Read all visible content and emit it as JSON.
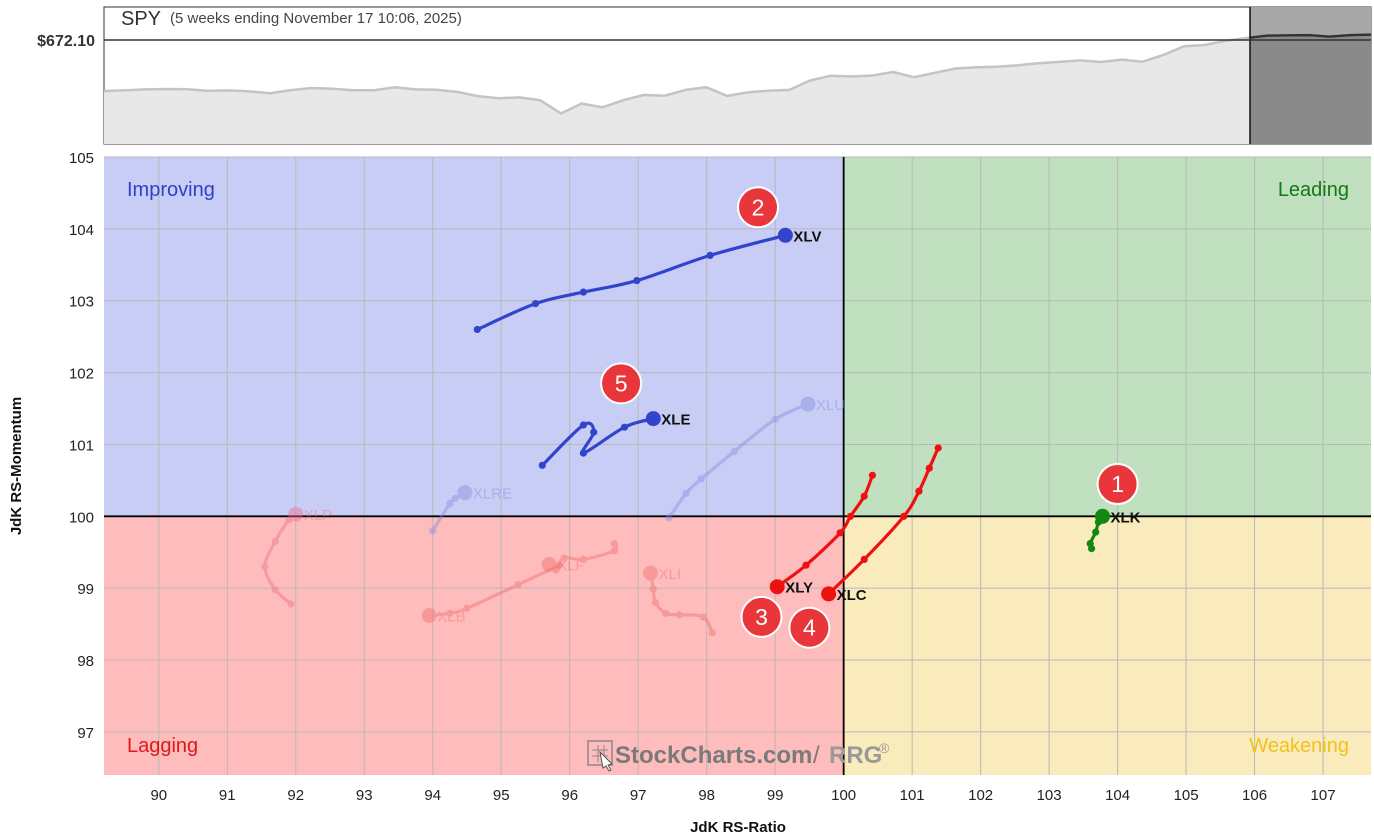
{
  "header": {
    "symbol": "SPY",
    "period": "(5 weeks ending November 17 10:06, 2025)",
    "price_label": "$672.10"
  },
  "quadrants": {
    "improving": {
      "label": "Improving",
      "color": "#2e3fc8",
      "fill": "#c8cdf5"
    },
    "leading": {
      "label": "Leading",
      "color": "#137a13",
      "fill": "#c0e0c0"
    },
    "lagging": {
      "label": "Lagging",
      "color": "#e01818",
      "fill": "#ffbcbc"
    },
    "weakening": {
      "label": "Weakening",
      "color": "#f2c21a",
      "fill": "#faebbd"
    }
  },
  "watermark": {
    "brand": "StockCharts.com",
    "sep": "/",
    "product": "RRG",
    "reg": "®"
  },
  "markers": [
    {
      "num": "1",
      "rs": 104.0,
      "mom": 100.45
    },
    {
      "num": "2",
      "rs": 98.75,
      "mom": 104.3
    },
    {
      "num": "3",
      "rs": 98.8,
      "mom": 98.6
    },
    {
      "num": "4",
      "rs": 99.5,
      "mom": 98.45
    },
    {
      "num": "5",
      "rs": 96.75,
      "mom": 101.85
    }
  ],
  "chart_data": [
    {
      "type": "line",
      "title": "SPY",
      "subtitle": "(5 weeks ending November 17 10:06, 2025)",
      "series": [
        {
          "name": "SPY",
          "values": [
            622.5,
            623.1,
            623.8,
            624.2,
            623.9,
            622.6,
            623.0,
            622.2,
            620.8,
            623.3,
            625.0,
            624.4,
            623.2,
            623.2,
            625.5,
            623.8,
            623.5,
            621.8,
            618.5,
            616.8,
            617.4,
            615.2,
            604.6,
            612.4,
            609.5,
            615.2,
            619.4,
            618.8,
            623.4,
            625.6,
            618.6,
            621.4,
            622.8,
            623.4,
            631.0,
            634.8,
            634.2,
            635.0,
            637.8,
            633.6,
            637.2,
            640.6,
            641.6,
            642.0,
            643.2,
            644.8,
            645.9,
            647.1,
            645.8,
            647.8,
            646.1,
            651.5,
            658.5,
            659.5,
            662.9,
            665.1,
            667.0,
            667.2,
            667.4,
            666.2,
            667.4,
            667.8
          ]
        }
      ],
      "reference_value": 672.1,
      "shaded_region": "last week"
    },
    {
      "type": "scatter",
      "xlabel": "JdK RS-Ratio",
      "ylabel": "JdK RS-Momentum",
      "xlim": [
        89.2,
        107.7
      ],
      "ylim": [
        96.4,
        105
      ],
      "x_ticks": [
        "90",
        "91",
        "92",
        "93",
        "94",
        "95",
        "96",
        "97",
        "98",
        "99",
        "100",
        "101",
        "102",
        "103",
        "104",
        "105",
        "106",
        "107"
      ],
      "y_ticks": [
        "97",
        "98",
        "99",
        "100",
        "101",
        "102",
        "103",
        "104",
        "105"
      ],
      "center": [
        100,
        100
      ],
      "series": [
        {
          "name": "XLK",
          "color": "#118811",
          "faded": false,
          "points": [
            [
              103.62,
              99.55
            ],
            [
              103.6,
              99.62
            ],
            [
              103.68,
              99.78
            ],
            [
              103.72,
              99.92
            ],
            [
              103.78,
              100.0
            ]
          ]
        },
        {
          "name": "XLV",
          "color": "#3344cc",
          "faded": false,
          "points": [
            [
              94.65,
              102.6
            ],
            [
              95.5,
              102.96
            ],
            [
              96.2,
              103.12
            ],
            [
              96.98,
              103.28
            ],
            [
              98.05,
              103.63
            ],
            [
              99.15,
              103.91
            ]
          ]
        },
        {
          "name": "XLE",
          "color": "#3344cc",
          "faded": false,
          "points": [
            [
              95.6,
              100.71
            ],
            [
              96.2,
              101.27
            ],
            [
              96.35,
              101.17
            ],
            [
              96.2,
              100.88
            ],
            [
              96.8,
              101.24
            ],
            [
              97.22,
              101.36
            ]
          ]
        },
        {
          "name": "XLY",
          "color": "#ee1111",
          "faded": false,
          "points": [
            [
              100.42,
              100.57
            ],
            [
              100.3,
              100.28
            ],
            [
              100.1,
              100.0
            ],
            [
              99.95,
              99.77
            ],
            [
              99.45,
              99.32
            ],
            [
              99.03,
              99.02
            ]
          ]
        },
        {
          "name": "XLC",
          "color": "#ee1111",
          "faded": false,
          "points": [
            [
              101.38,
              100.95
            ],
            [
              101.25,
              100.67
            ],
            [
              101.1,
              100.35
            ],
            [
              100.88,
              100.0
            ],
            [
              100.3,
              99.4
            ],
            [
              99.78,
              98.92
            ]
          ]
        },
        {
          "name": "XLU",
          "color": "#7f8ae0",
          "faded": true,
          "points": [
            [
              97.45,
              99.98
            ],
            [
              97.7,
              100.32
            ],
            [
              97.92,
              100.52
            ],
            [
              98.4,
              100.9
            ],
            [
              99.0,
              101.35
            ],
            [
              99.48,
              101.56
            ]
          ]
        },
        {
          "name": "XLRE",
          "color": "#7f8ae0",
          "faded": true,
          "points": [
            [
              94.0,
              99.8
            ],
            [
              94.25,
              100.18
            ],
            [
              94.33,
              100.25
            ],
            [
              94.47,
              100.33
            ]
          ]
        },
        {
          "name": "XLP",
          "color": "#ee6a8a",
          "faded": true,
          "points": [
            [
              91.93,
              98.78
            ],
            [
              91.7,
              98.98
            ],
            [
              91.55,
              99.3
            ],
            [
              91.7,
              99.65
            ],
            [
              91.9,
              99.95
            ],
            [
              92.0,
              100.03
            ]
          ]
        },
        {
          "name": "XLF",
          "color": "#ee6a6a",
          "faded": true,
          "points": [
            [
              96.65,
              99.62
            ],
            [
              96.65,
              99.52
            ],
            [
              96.2,
              99.4
            ],
            [
              95.92,
              99.42
            ],
            [
              95.8,
              99.25
            ],
            [
              95.7,
              99.33
            ]
          ]
        },
        {
          "name": "XLB",
          "color": "#ee6a6a",
          "faded": true,
          "points": [
            [
              95.85,
              99.32
            ],
            [
              95.25,
              99.05
            ],
            [
              94.5,
              98.72
            ],
            [
              94.25,
              98.65
            ],
            [
              93.95,
              98.62
            ]
          ]
        },
        {
          "name": "XLI",
          "color": "#ee6a6a",
          "faded": true,
          "points": [
            [
              98.08,
              98.38
            ],
            [
              97.95,
              98.6
            ],
            [
              97.6,
              98.63
            ],
            [
              97.4,
              98.65
            ],
            [
              97.25,
              98.8
            ],
            [
              97.22,
              98.99
            ],
            [
              97.18,
              99.21
            ]
          ]
        }
      ]
    }
  ]
}
